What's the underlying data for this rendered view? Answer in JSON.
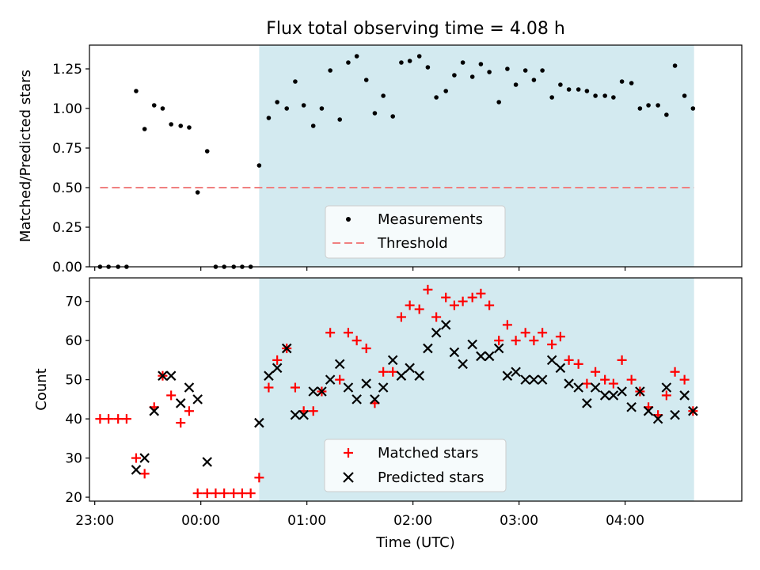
{
  "colors": {
    "background": "#ffffff",
    "observing_band": "#d3eaf0",
    "measurement": "#000000",
    "threshold": "#f08080",
    "matched": "#ff0000",
    "predicted": "#000000"
  },
  "chart_data": [
    {
      "type": "scatter",
      "title": "Flux total observing time = 4.08 h",
      "xlabel": "",
      "ylabel": "Matched/Predicted stars",
      "xlim": [
        -1.05,
        5.1
      ],
      "ylim": [
        0,
        1.4
      ],
      "yticks": [
        0.0,
        0.25,
        0.5,
        0.75,
        1.0,
        1.25
      ],
      "ytick_labels": [
        "0.00",
        "0.25",
        "0.50",
        "0.75",
        "1.00",
        "1.25"
      ],
      "xticks": [
        -1.0,
        0.0,
        1.0,
        2.0,
        3.0,
        4.0
      ],
      "observing_window": [
        0.55,
        4.65
      ],
      "legend": {
        "position": "lower-center",
        "entries": [
          "Measurements",
          "Threshold"
        ]
      },
      "threshold": {
        "name": "Threshold",
        "value": 0.5,
        "x_range": [
          -0.95,
          4.65
        ]
      },
      "series": [
        {
          "name": "Measurements",
          "marker": "dot",
          "x": [
            -0.95,
            -0.87,
            -0.78,
            -0.7,
            -0.61,
            -0.53,
            -0.44,
            -0.36,
            -0.28,
            -0.19,
            -0.11,
            -0.03,
            0.06,
            0.14,
            0.22,
            0.31,
            0.39,
            0.47,
            0.55,
            0.64,
            0.72,
            0.81,
            0.89,
            0.97,
            1.06,
            1.14,
            1.22,
            1.31,
            1.39,
            1.47,
            1.56,
            1.64,
            1.72,
            1.81,
            1.89,
            1.97,
            2.06,
            2.14,
            2.22,
            2.31,
            2.39,
            2.47,
            2.56,
            2.64,
            2.72,
            2.81,
            2.89,
            2.97,
            3.06,
            3.14,
            3.22,
            3.31,
            3.39,
            3.47,
            3.56,
            3.64,
            3.72,
            3.81,
            3.89,
            3.97,
            4.06,
            4.14,
            4.22,
            4.31,
            4.39,
            4.47,
            4.56,
            4.64
          ],
          "y": [
            0,
            0,
            0,
            0,
            1.11,
            0.87,
            1.02,
            1.0,
            0.9,
            0.89,
            0.88,
            0.47,
            0.73,
            0,
            0,
            0,
            0,
            0,
            0.64,
            0.94,
            1.04,
            1.0,
            1.17,
            1.02,
            0.89,
            1.0,
            1.24,
            0.93,
            1.29,
            1.33,
            1.18,
            0.97,
            1.08,
            0.95,
            1.29,
            1.3,
            1.33,
            1.26,
            1.07,
            1.11,
            1.21,
            1.29,
            1.2,
            1.28,
            1.23,
            1.04,
            1.25,
            1.15,
            1.24,
            1.18,
            1.24,
            1.07,
            1.15,
            1.12,
            1.12,
            1.11,
            1.08,
            1.08,
            1.07,
            1.17,
            1.16,
            1.0,
            1.02,
            1.02,
            0.96,
            1.27,
            1.08,
            1.0
          ]
        }
      ]
    },
    {
      "type": "scatter",
      "title": "",
      "xlabel": "Time (UTC)",
      "ylabel": "Count",
      "xlim": [
        -1.05,
        5.1
      ],
      "ylim": [
        19,
        76
      ],
      "yticks": [
        20,
        30,
        40,
        50,
        60,
        70
      ],
      "xticks": [
        -1.0,
        0.0,
        1.0,
        2.0,
        3.0,
        4.0
      ],
      "xtick_labels": [
        "23:00",
        "00:00",
        "01:00",
        "02:00",
        "03:00",
        "04:00"
      ],
      "observing_window": [
        0.55,
        4.65
      ],
      "legend": {
        "position": "lower-center",
        "entries": [
          "Matched stars",
          "Predicted stars"
        ]
      },
      "series": [
        {
          "name": "Matched stars",
          "marker": "plus",
          "x": [
            -0.95,
            -0.87,
            -0.78,
            -0.7,
            -0.61,
            -0.53,
            -0.44,
            -0.36,
            -0.28,
            -0.19,
            -0.11,
            -0.03,
            0.06,
            0.14,
            0.22,
            0.31,
            0.39,
            0.47,
            0.55,
            0.64,
            0.72,
            0.81,
            0.89,
            0.97,
            1.06,
            1.14,
            1.22,
            1.31,
            1.39,
            1.47,
            1.56,
            1.64,
            1.72,
            1.81,
            1.89,
            1.97,
            2.06,
            2.14,
            2.22,
            2.31,
            2.39,
            2.47,
            2.56,
            2.64,
            2.72,
            2.81,
            2.89,
            2.97,
            3.06,
            3.14,
            3.22,
            3.31,
            3.39,
            3.47,
            3.56,
            3.64,
            3.72,
            3.81,
            3.89,
            3.97,
            4.06,
            4.14,
            4.22,
            4.31,
            4.39,
            4.47,
            4.56,
            4.64
          ],
          "y": [
            40,
            40,
            40,
            40,
            30,
            26,
            43,
            51,
            46,
            39,
            42,
            21,
            21,
            21,
            21,
            21,
            21,
            21,
            25,
            48,
            55,
            58,
            48,
            42,
            42,
            47,
            62,
            50,
            62,
            60,
            58,
            44,
            52,
            52,
            66,
            69,
            68,
            73,
            66,
            71,
            69,
            70,
            71,
            72,
            69,
            60,
            64,
            60,
            62,
            60,
            62,
            59,
            61,
            55,
            54,
            49,
            52,
            50,
            49,
            55,
            50,
            47,
            43,
            41,
            46,
            52,
            50,
            42
          ]
        },
        {
          "name": "Predicted stars",
          "marker": "x",
          "x": [
            -0.61,
            -0.53,
            -0.44,
            -0.36,
            -0.28,
            -0.19,
            -0.11,
            -0.03,
            0.06,
            0.55,
            0.64,
            0.72,
            0.81,
            0.89,
            0.97,
            1.06,
            1.14,
            1.22,
            1.31,
            1.39,
            1.47,
            1.56,
            1.64,
            1.72,
            1.81,
            1.89,
            1.97,
            2.06,
            2.14,
            2.22,
            2.31,
            2.39,
            2.47,
            2.56,
            2.64,
            2.72,
            2.81,
            2.89,
            2.97,
            3.06,
            3.14,
            3.22,
            3.31,
            3.39,
            3.47,
            3.56,
            3.64,
            3.72,
            3.81,
            3.89,
            3.97,
            4.06,
            4.14,
            4.22,
            4.31,
            4.39,
            4.47,
            4.56,
            4.64
          ],
          "y": [
            27,
            30,
            42,
            51,
            51,
            44,
            48,
            45,
            29,
            39,
            51,
            53,
            58,
            41,
            41,
            47,
            47,
            50,
            54,
            48,
            45,
            49,
            45,
            48,
            55,
            51,
            53,
            51,
            58,
            62,
            64,
            57,
            54,
            59,
            56,
            56,
            58,
            51,
            52,
            50,
            50,
            50,
            55,
            53,
            49,
            48,
            44,
            48,
            46,
            46,
            47,
            43,
            47,
            42,
            40,
            48,
            41,
            46,
            42
          ]
        }
      ]
    }
  ]
}
